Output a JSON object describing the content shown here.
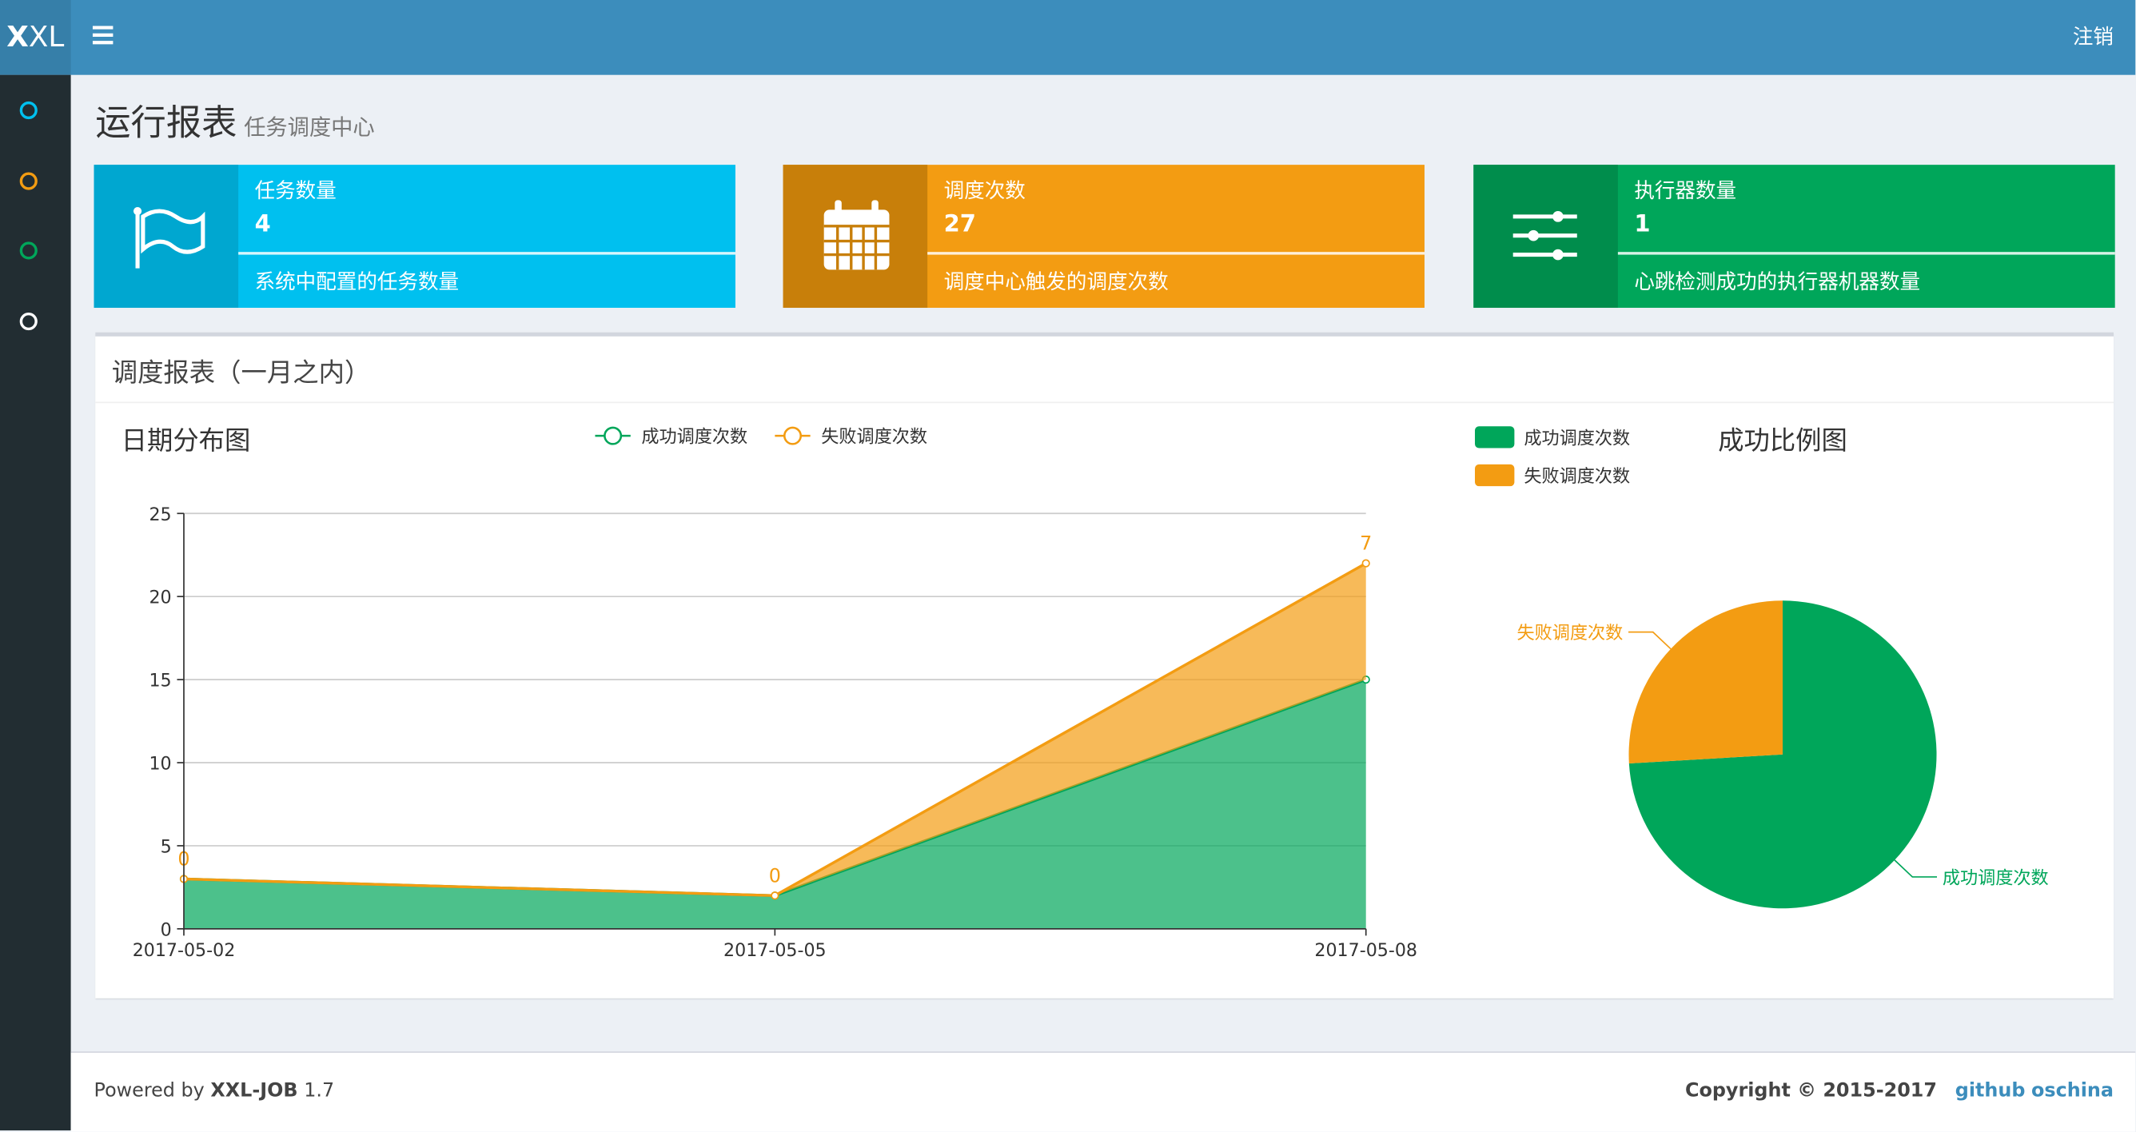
{
  "header": {
    "logo_bold": "X",
    "logo_rest": "XL",
    "logout": "注销"
  },
  "page": {
    "title": "运行报表",
    "subtitle": "任务调度中心"
  },
  "info_boxes": [
    {
      "label": "任务数量",
      "value": "4",
      "description": "系统中配置的任务数量"
    },
    {
      "label": "调度次数",
      "value": "27",
      "description": "调度中心触发的调度次数"
    },
    {
      "label": "执行器数量",
      "value": "1",
      "description": "心跳检测成功的执行器机器数量"
    }
  ],
  "panel": {
    "title": "调度报表（一月之内）"
  },
  "chart_data": [
    {
      "type": "stacked-area",
      "title": "日期分布图",
      "categories": [
        "2017-05-02",
        "2017-05-05",
        "2017-05-08"
      ],
      "series": [
        {
          "name": "成功调度次数",
          "color": "#00a65a",
          "values": [
            3,
            2,
            15
          ]
        },
        {
          "name": "失败调度次数",
          "color": "#f39c12",
          "values": [
            0,
            0,
            7
          ]
        }
      ],
      "ylim": [
        0,
        25
      ],
      "yticks": [
        0,
        5,
        10,
        15,
        20,
        25
      ],
      "grid": true
    },
    {
      "type": "pie",
      "title": "成功比例图",
      "categories": [
        "成功调度次数",
        "失败调度次数"
      ],
      "values": [
        20,
        7
      ],
      "colors": [
        "#00a65a",
        "#f39c12"
      ]
    }
  ],
  "footer": {
    "powered_prefix": "Powered by",
    "product": "XXL-JOB",
    "version": "1.7",
    "copyright": "Copyright © 2015-2017",
    "links": [
      "github",
      "oschina"
    ]
  }
}
